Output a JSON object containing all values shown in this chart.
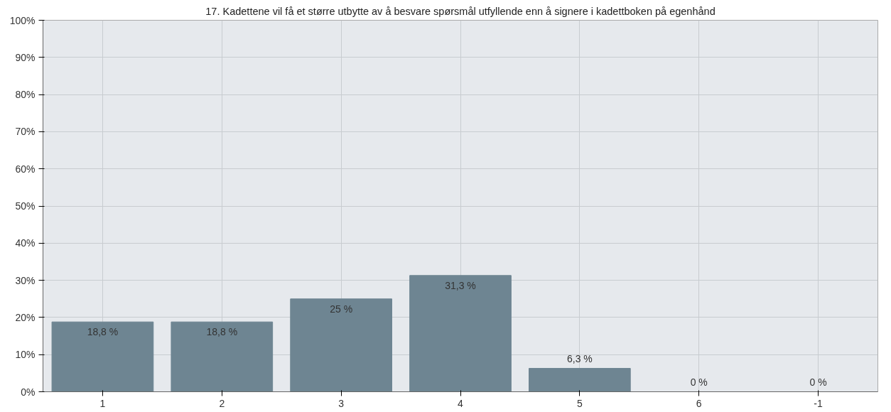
{
  "chart_data": {
    "type": "bar",
    "title": "17. Kadettene vil få et større utbytte av å besvare spørsmål utfyllende enn å signere i kadettboken på egenhånd",
    "categories": [
      "1",
      "2",
      "3",
      "4",
      "5",
      "6",
      "-1"
    ],
    "values": [
      18.8,
      18.8,
      25,
      31.3,
      6.3,
      0,
      0
    ],
    "value_labels": [
      "18,8 %",
      "18,8 %",
      "25 %",
      "31,3 %",
      "6,3 %",
      "0 %",
      "0 %"
    ],
    "color": "#6e8592",
    "ylim": [
      0,
      100
    ],
    "yticks": [
      {
        "value": 0,
        "label": "0%"
      },
      {
        "value": 10,
        "label": "10%"
      },
      {
        "value": 20,
        "label": "20%"
      },
      {
        "value": 30,
        "label": "30%"
      },
      {
        "value": 40,
        "label": "40%"
      },
      {
        "value": 50,
        "label": "50%"
      },
      {
        "value": 60,
        "label": "60%"
      },
      {
        "value": 70,
        "label": "70%"
      },
      {
        "value": 80,
        "label": "80%"
      },
      {
        "value": 90,
        "label": "90%"
      },
      {
        "value": 100,
        "label": "100%"
      }
    ],
    "grid": true
  }
}
